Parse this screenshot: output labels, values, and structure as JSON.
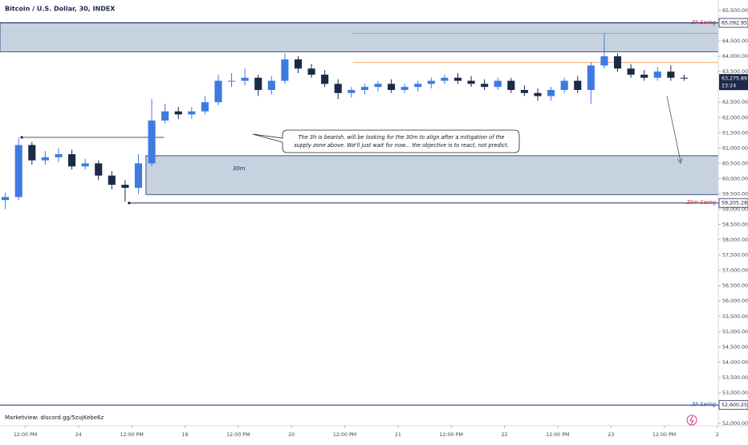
{
  "chart_data": {
    "type": "candlestick",
    "title": "Bitcoin / U.S. Dollar, 30, INDEX",
    "footer": "Marketview: discord.gg/5zujKebe6z",
    "up_color": "#3d7be0",
    "down_color": "#1b2a48",
    "x": [
      7.5,
      10.5,
      13.5,
      16.5,
      19.5,
      22.5,
      25.5,
      28.5,
      31.5,
      34.5,
      37.5,
      40.5,
      43.5,
      46.5,
      49.5,
      52.5,
      55.5,
      58.5,
      61.5,
      64.5,
      67.5,
      70.5,
      73.5,
      76.5,
      79.5,
      82.5,
      85.5,
      88.5,
      91.5,
      94.5,
      97.5,
      100.5,
      103.5,
      106.5,
      109.5,
      112.5,
      115.5,
      118.5,
      121.5,
      124.5,
      127.5,
      130.5,
      133.5,
      136.5,
      139.5,
      142.5,
      145.5,
      148.5,
      151.5,
      154.5,
      157.5,
      160.5
    ],
    "open": [
      59300,
      59400,
      61100,
      60600,
      60700,
      60800,
      60400,
      60500,
      60100,
      59800,
      59700,
      60500,
      61900,
      62200,
      62100,
      62200,
      62500,
      63200,
      63200,
      63300,
      62900,
      63200,
      63900,
      63600,
      63400,
      63100,
      62800,
      62900,
      63000,
      63100,
      62900,
      63000,
      63100,
      63200,
      63300,
      63200,
      63100,
      63000,
      63200,
      62900,
      62800,
      62700,
      62900,
      63200,
      62900,
      63700,
      64000,
      63600,
      63400,
      63300,
      63500,
      63300
    ],
    "high": [
      59550,
      61350,
      61200,
      60900,
      61000,
      60950,
      60650,
      60600,
      60250,
      59950,
      60800,
      62600,
      62450,
      62350,
      62350,
      62700,
      63400,
      63450,
      63600,
      63400,
      63350,
      64100,
      64000,
      63750,
      63550,
      63250,
      63000,
      63100,
      63200,
      63250,
      63100,
      63200,
      63300,
      63400,
      63450,
      63350,
      63250,
      63300,
      63300,
      63050,
      62950,
      63000,
      63300,
      63350,
      63800,
      64750,
      64100,
      63750,
      63550,
      63650,
      63700,
      63400
    ],
    "low": [
      59000,
      59300,
      60450,
      60450,
      60550,
      60300,
      60300,
      59950,
      59650,
      59250,
      59500,
      60400,
      61800,
      61950,
      61950,
      62100,
      62400,
      63000,
      63050,
      62700,
      62750,
      63100,
      63450,
      63300,
      63000,
      62600,
      62650,
      62750,
      62850,
      62800,
      62800,
      62850,
      62950,
      63100,
      63100,
      63000,
      62900,
      62900,
      62800,
      62700,
      62550,
      62550,
      62800,
      62800,
      62450,
      63600,
      63500,
      63300,
      63200,
      63200,
      63200,
      63200
    ],
    "close": [
      59400,
      61100,
      60600,
      60700,
      60800,
      60400,
      60500,
      60100,
      59800,
      59700,
      60500,
      61900,
      62200,
      62100,
      62200,
      62500,
      63200,
      63200,
      63300,
      62900,
      63200,
      63900,
      63600,
      63400,
      63100,
      62800,
      62900,
      63000,
      63100,
      62900,
      63000,
      63100,
      63200,
      63300,
      63200,
      63100,
      63000,
      63200,
      62900,
      62800,
      62700,
      62900,
      63200,
      62900,
      63700,
      64000,
      63600,
      63400,
      63300,
      63500,
      63300,
      63276
    ],
    "xlim": [
      6.3,
      168.2
    ],
    "xticks": [
      {
        "value": 12,
        "label": "12:00 PM"
      },
      24,
      {
        "value": 36,
        "label": "12:00 PM"
      },
      {
        "value": 48,
        "label": "19"
      },
      {
        "value": 60,
        "label": "12:00 PM"
      },
      {
        "value": 72,
        "label": "20"
      },
      {
        "value": 84,
        "label": "12:00 PM"
      },
      {
        "value": 96,
        "label": "21"
      },
      {
        "value": 108,
        "label": "12:00 PM"
      },
      {
        "value": 120,
        "label": "22"
      },
      {
        "value": 132,
        "label": "12:00 PM"
      },
      {
        "value": 144,
        "label": "23"
      },
      {
        "value": 156,
        "label": "12:00 PM"
      },
      {
        "value": 168,
        "label": "2"
      }
    ],
    "ylim": [
      51923,
      65841
    ],
    "yticks": [
      {
        "value": 65500,
        "label": "65,500.00"
      },
      {
        "value": 65000,
        "label": "65,000.00"
      },
      {
        "value": 64500,
        "label": "64,500.00"
      },
      {
        "value": 64000,
        "label": "64,000.00"
      },
      {
        "value": 63500,
        "label": "63,500.00"
      },
      {
        "value": 63000,
        "label": "63,000.00"
      },
      {
        "value": 62500,
        "label": "62,500.00"
      },
      {
        "value": 62000,
        "label": "62,000.00"
      },
      {
        "value": 61500,
        "label": "61,500.00"
      },
      {
        "value": 61000,
        "label": "61,000.00"
      },
      {
        "value": 60500,
        "label": "60,500.00"
      },
      {
        "value": 60000,
        "label": "60,000.00"
      },
      {
        "value": 59500,
        "label": "59,500.00"
      },
      {
        "value": 59000,
        "label": "59,000.00"
      },
      {
        "value": 58500,
        "label": "58,500.00"
      },
      {
        "value": 58000,
        "label": "58,000.00"
      },
      {
        "value": 57500,
        "label": "57,500.00"
      },
      {
        "value": 57000,
        "label": "57,000.00"
      },
      {
        "value": 56500,
        "label": "56,500.00"
      },
      {
        "value": 56000,
        "label": "56,000.00"
      },
      {
        "value": 55500,
        "label": "55,500.00"
      },
      {
        "value": 55000,
        "label": "55,000.00"
      },
      {
        "value": 54500,
        "label": "54,500.00"
      },
      {
        "value": 54000,
        "label": "54,000.00"
      },
      {
        "value": 53500,
        "label": "53,500.00"
      },
      {
        "value": 53000,
        "label": "53,000.00"
      },
      {
        "value": 52500,
        "label": "52,500.00"
      },
      {
        "value": 52000,
        "label": "52,000.00"
      }
    ],
    "zones": [
      {
        "from": 6.3,
        "low": 64150,
        "high": 65100
      },
      {
        "from": 39.2,
        "low": 59480,
        "high": 60750,
        "label": "30m"
      }
    ],
    "levels": [
      {
        "name": "3h Swing",
        "from": 6.3,
        "value": 65092.95,
        "label": "65,092.95",
        "color": "#1b2a6b",
        "name_color": "#d03030"
      },
      {
        "name": "30m Swing",
        "from": 35.4,
        "value": 59205.28,
        "label": "59,205.28",
        "color": "#1b2a6b",
        "name_color": "#d03030"
      },
      {
        "name": "3h Swing",
        "from": 6.3,
        "value": 52600.25,
        "label": "52,600.25",
        "color": "#1b2a6b",
        "name_color": "#2a4fb0"
      }
    ],
    "lines": [
      {
        "from": 11.2,
        "to": 43.3,
        "value": 61350,
        "color": "#222222"
      },
      {
        "from": 85.8,
        "to": 168.2,
        "value": 63800,
        "color": "#f08a3c"
      },
      {
        "from": 85.8,
        "to": 168.2,
        "value": 64750,
        "color": "#9aa0aa"
      }
    ],
    "last_price": {
      "value": 63275.89,
      "label": "63,275.89",
      "countdown": "23:24"
    },
    "annotation": [
      "The 3h is bearish, will be looking for the 30m to align after a mitigation of the",
      "supply zone above. We'll just wait for now... the objective is to react, not predict."
    ]
  }
}
